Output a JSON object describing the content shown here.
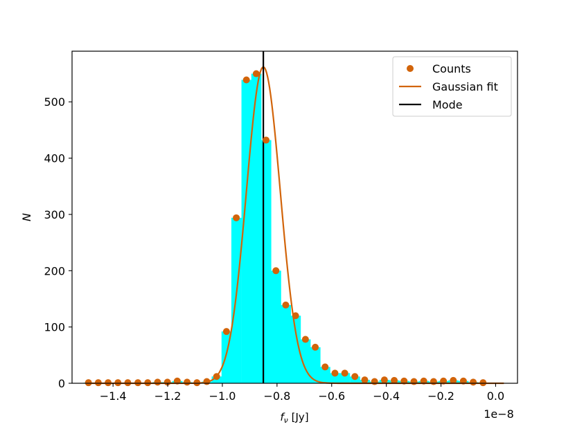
{
  "chart_data": {
    "type": "histogram",
    "xlabel": "f_ν [Jy]",
    "xlabel_main": "f",
    "xlabel_sub": "ν",
    "xlabel_unit": " [Jy]",
    "ylabel": "N",
    "x_offset_label": "1e−8",
    "xlim": [
      -1.55,
      0.08
    ],
    "ylim": [
      0,
      590
    ],
    "x_ticks": [
      -1.4,
      -1.2,
      -1.0,
      -0.8,
      -0.6,
      -0.4,
      -0.2,
      0.0
    ],
    "x_tick_labels": [
      "−1.4",
      "−1.2",
      "−1.0",
      "−0.8",
      "−0.6",
      "−0.4",
      "−0.2",
      "0.0"
    ],
    "y_ticks": [
      0,
      100,
      200,
      300,
      400,
      500
    ],
    "y_tick_labels": [
      "0",
      "100",
      "200",
      "300",
      "400",
      "500"
    ],
    "bin_width": 0.0361,
    "bins": [
      {
        "x": -1.49,
        "count": 1
      },
      {
        "x": -1.454,
        "count": 1
      },
      {
        "x": -1.418,
        "count": 1
      },
      {
        "x": -1.382,
        "count": 1
      },
      {
        "x": -1.346,
        "count": 1
      },
      {
        "x": -1.309,
        "count": 1
      },
      {
        "x": -1.273,
        "count": 1
      },
      {
        "x": -1.237,
        "count": 2
      },
      {
        "x": -1.201,
        "count": 2
      },
      {
        "x": -1.165,
        "count": 4
      },
      {
        "x": -1.129,
        "count": 2
      },
      {
        "x": -1.093,
        "count": 1
      },
      {
        "x": -1.057,
        "count": 3
      },
      {
        "x": -1.021,
        "count": 12
      },
      {
        "x": -0.985,
        "count": 92
      },
      {
        "x": -0.949,
        "count": 294
      },
      {
        "x": -0.912,
        "count": 539
      },
      {
        "x": -0.876,
        "count": 550
      },
      {
        "x": -0.84,
        "count": 432
      },
      {
        "x": -0.804,
        "count": 200
      },
      {
        "x": -0.768,
        "count": 139
      },
      {
        "x": -0.732,
        "count": 120
      },
      {
        "x": -0.696,
        "count": 78
      },
      {
        "x": -0.66,
        "count": 64
      },
      {
        "x": -0.624,
        "count": 29
      },
      {
        "x": -0.588,
        "count": 18
      },
      {
        "x": -0.552,
        "count": 18
      },
      {
        "x": -0.515,
        "count": 12
      },
      {
        "x": -0.479,
        "count": 6
      },
      {
        "x": -0.443,
        "count": 3
      },
      {
        "x": -0.407,
        "count": 6
      },
      {
        "x": -0.371,
        "count": 5
      },
      {
        "x": -0.335,
        "count": 4
      },
      {
        "x": -0.299,
        "count": 3
      },
      {
        "x": -0.263,
        "count": 4
      },
      {
        "x": -0.227,
        "count": 3
      },
      {
        "x": -0.191,
        "count": 4
      },
      {
        "x": -0.155,
        "count": 5
      },
      {
        "x": -0.118,
        "count": 4
      },
      {
        "x": -0.082,
        "count": 2
      },
      {
        "x": -0.046,
        "count": 1
      }
    ],
    "gaussian_fit": {
      "amplitude": 562,
      "mean": -0.85,
      "sigma": 0.062
    },
    "mode": -0.85,
    "legend_position": "top-right",
    "series": [
      {
        "name": "Counts",
        "marker": "circle",
        "color": "#d2640a"
      },
      {
        "name": "Gaussian fit",
        "marker": "line",
        "color": "#d2640a"
      },
      {
        "name": "Mode",
        "marker": "line",
        "color": "#000000"
      }
    ],
    "colors": {
      "bars": "#00ffff",
      "counts": "#d2640a",
      "fit": "#d2640a",
      "mode": "#000000"
    }
  }
}
